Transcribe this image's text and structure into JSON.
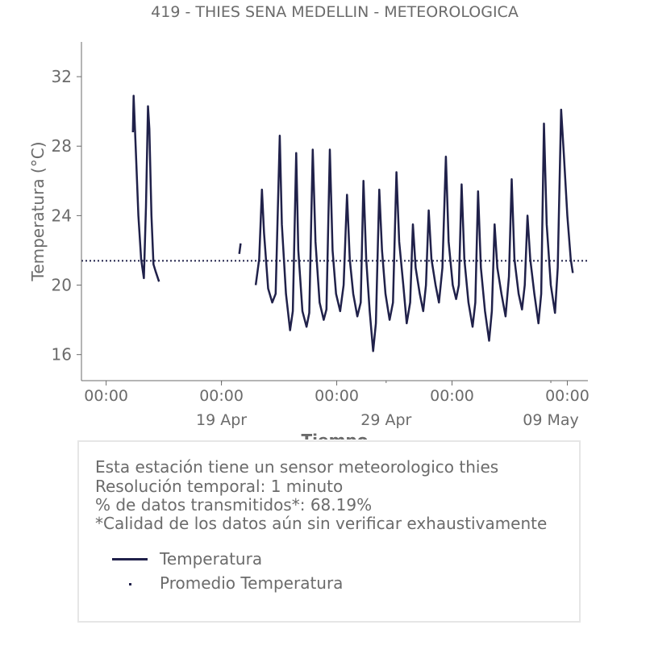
{
  "chart_data": {
    "type": "line",
    "title": "419 - THIES SENA MEDELLIN - METEOROLOGICA",
    "xlabel": "Tiempo",
    "ylabel": "Temperatura (°C)",
    "ylim": [
      14.5,
      34
    ],
    "yticks": [
      16,
      20,
      24,
      28,
      32
    ],
    "xlim": [
      "2023-04-10T12:00",
      "2023-05-11T06:00"
    ],
    "xticks_time": [
      {
        "t": "2023-04-12T00:00",
        "label": "00:00"
      },
      {
        "t": "2023-04-19T00:00",
        "label": "00:00"
      },
      {
        "t": "2023-04-26T00:00",
        "label": "00:00"
      },
      {
        "t": "2023-05-03T00:00",
        "label": "00:00"
      },
      {
        "t": "2023-05-10T00:00",
        "label": "00:00"
      }
    ],
    "xticks_date": [
      {
        "t": "2023-04-19T00:00",
        "label": "19 Apr"
      },
      {
        "t": "2023-04-29T00:00",
        "label": "29 Apr"
      },
      {
        "t": "2023-05-09T00:00",
        "label": "09 May"
      }
    ],
    "grid": false,
    "legend_placement": "below",
    "series": [
      {
        "name": "Temperatura",
        "color": "#20214a",
        "style": "solid",
        "segments": [
          [
            [
              "2023-04-13T15:00",
              28.8
            ],
            [
              "2023-04-13T16:00",
              30.9
            ],
            [
              "2023-04-13T19:00",
              28.0
            ],
            [
              "2023-04-13T23:00",
              24.0
            ],
            [
              "2023-04-14T03:00",
              21.5
            ],
            [
              "2023-04-14T07:00",
              20.4
            ],
            [
              "2023-04-14T10:00",
              24.5
            ],
            [
              "2023-04-14T13:00",
              30.3
            ],
            [
              "2023-04-14T15:00",
              29.0
            ],
            [
              "2023-04-14T18:00",
              24.0
            ],
            [
              "2023-04-14T21:00",
              21.2
            ],
            [
              "2023-04-15T00:00",
              20.8
            ],
            [
              "2023-04-15T05:00",
              20.2
            ]
          ],
          [
            [
              "2023-04-20T02:00",
              21.8
            ],
            [
              "2023-04-20T04:00",
              22.4
            ]
          ],
          [
            [
              "2023-04-21T02:00",
              20.0
            ],
            [
              "2023-04-21T07:00",
              21.5
            ],
            [
              "2023-04-21T11:00",
              25.5
            ],
            [
              "2023-04-21T14:00",
              23.0
            ],
            [
              "2023-04-21T20:00",
              19.8
            ],
            [
              "2023-04-22T02:00",
              19.0
            ],
            [
              "2023-04-22T07:00",
              19.5
            ],
            [
              "2023-04-22T13:00",
              28.6
            ],
            [
              "2023-04-22T16:00",
              23.5
            ],
            [
              "2023-04-22T22:00",
              19.5
            ],
            [
              "2023-04-23T04:00",
              17.4
            ],
            [
              "2023-04-23T08:00",
              18.5
            ],
            [
              "2023-04-23T13:00",
              27.6
            ],
            [
              "2023-04-23T16:00",
              22.0
            ],
            [
              "2023-04-23T22:00",
              18.5
            ],
            [
              "2023-04-24T04:00",
              17.6
            ],
            [
              "2023-04-24T08:00",
              18.4
            ],
            [
              "2023-04-24T13:00",
              27.8
            ],
            [
              "2023-04-24T17:00",
              22.5
            ],
            [
              "2023-04-24T23:00",
              19.0
            ],
            [
              "2023-04-25T05:00",
              18.0
            ],
            [
              "2023-04-25T09:00",
              18.6
            ],
            [
              "2023-04-25T14:00",
              27.8
            ],
            [
              "2023-04-25T18:00",
              22.0
            ],
            [
              "2023-04-25T23:00",
              19.5
            ],
            [
              "2023-04-26T05:00",
              18.5
            ],
            [
              "2023-04-26T10:00",
              20.0
            ],
            [
              "2023-04-26T15:00",
              25.2
            ],
            [
              "2023-04-26T19:00",
              21.5
            ],
            [
              "2023-04-27T00:00",
              19.5
            ],
            [
              "2023-04-27T06:00",
              18.2
            ],
            [
              "2023-04-27T11:00",
              19.0
            ],
            [
              "2023-04-27T15:00",
              26.0
            ],
            [
              "2023-04-27T19:00",
              21.5
            ],
            [
              "2023-04-28T00:00",
              18.5
            ],
            [
              "2023-04-28T05:00",
              16.2
            ],
            [
              "2023-04-28T09:00",
              17.8
            ],
            [
              "2023-04-28T14:00",
              25.5
            ],
            [
              "2023-04-28T18:00",
              22.0
            ],
            [
              "2023-04-28T23:00",
              19.5
            ],
            [
              "2023-04-29T05:00",
              18.0
            ],
            [
              "2023-04-29T10:00",
              19.0
            ],
            [
              "2023-04-29T15:00",
              26.5
            ],
            [
              "2023-04-29T19:00",
              22.5
            ],
            [
              "2023-04-30T01:00",
              20.0
            ],
            [
              "2023-04-30T06:00",
              17.8
            ],
            [
              "2023-04-30T11:00",
              19.0
            ],
            [
              "2023-04-30T15:00",
              23.5
            ],
            [
              "2023-04-30T19:00",
              21.0
            ],
            [
              "2023-05-01T01:00",
              19.5
            ],
            [
              "2023-05-01T06:00",
              18.5
            ],
            [
              "2023-05-01T10:00",
              20.0
            ],
            [
              "2023-05-01T14:00",
              24.3
            ],
            [
              "2023-05-01T18:00",
              21.5
            ],
            [
              "2023-05-02T00:00",
              20.0
            ],
            [
              "2023-05-02T05:00",
              19.0
            ],
            [
              "2023-05-02T10:00",
              21.0
            ],
            [
              "2023-05-02T15:00",
              27.4
            ],
            [
              "2023-05-02T19:00",
              22.5
            ],
            [
              "2023-05-03T01:00",
              20.0
            ],
            [
              "2023-05-03T06:00",
              19.2
            ],
            [
              "2023-05-03T10:00",
              20.0
            ],
            [
              "2023-05-03T14:00",
              25.8
            ],
            [
              "2023-05-03T18:00",
              21.5
            ],
            [
              "2023-05-04T00:00",
              19.0
            ],
            [
              "2023-05-04T06:00",
              17.6
            ],
            [
              "2023-05-04T10:00",
              19.0
            ],
            [
              "2023-05-04T14:00",
              25.4
            ],
            [
              "2023-05-04T18:00",
              21.0
            ],
            [
              "2023-05-05T00:00",
              18.5
            ],
            [
              "2023-05-05T06:00",
              16.8
            ],
            [
              "2023-05-05T10:00",
              18.5
            ],
            [
              "2023-05-05T14:00",
              23.5
            ],
            [
              "2023-05-05T18:00",
              21.0
            ],
            [
              "2023-05-06T00:00",
              19.5
            ],
            [
              "2023-05-06T06:00",
              18.2
            ],
            [
              "2023-05-06T11:00",
              20.5
            ],
            [
              "2023-05-06T15:00",
              26.1
            ],
            [
              "2023-05-06T19:00",
              21.5
            ],
            [
              "2023-05-07T01:00",
              19.5
            ],
            [
              "2023-05-07T06:00",
              18.6
            ],
            [
              "2023-05-07T10:00",
              20.0
            ],
            [
              "2023-05-07T14:00",
              24.0
            ],
            [
              "2023-05-07T18:00",
              21.5
            ],
            [
              "2023-05-08T00:00",
              19.5
            ],
            [
              "2023-05-08T06:00",
              17.8
            ],
            [
              "2023-05-08T10:00",
              19.5
            ],
            [
              "2023-05-08T14:00",
              29.3
            ],
            [
              "2023-05-08T18:00",
              23.5
            ],
            [
              "2023-05-09T00:00",
              20.0
            ],
            [
              "2023-05-09T06:00",
              18.4
            ],
            [
              "2023-05-09T10:00",
              21.0
            ],
            [
              "2023-05-09T15:00",
              30.1
            ],
            [
              "2023-05-09T19:00",
              27.5
            ],
            [
              "2023-05-10T00:00",
              24.0
            ],
            [
              "2023-05-10T05:00",
              21.5
            ],
            [
              "2023-05-10T08:00",
              20.7
            ]
          ]
        ]
      },
      {
        "name": "Promedio Temperatura",
        "color": "#20214a",
        "style": "dotted",
        "value": 21.4
      }
    ]
  },
  "info": {
    "line1": "Esta estación tiene un sensor meteorologico thies",
    "line2": "Resolución temporal: 1 minuto",
    "line3": "% de datos transmitidos*: 68.19%",
    "line4": "*Calidad de los datos aún sin verificar exhaustivamente"
  }
}
